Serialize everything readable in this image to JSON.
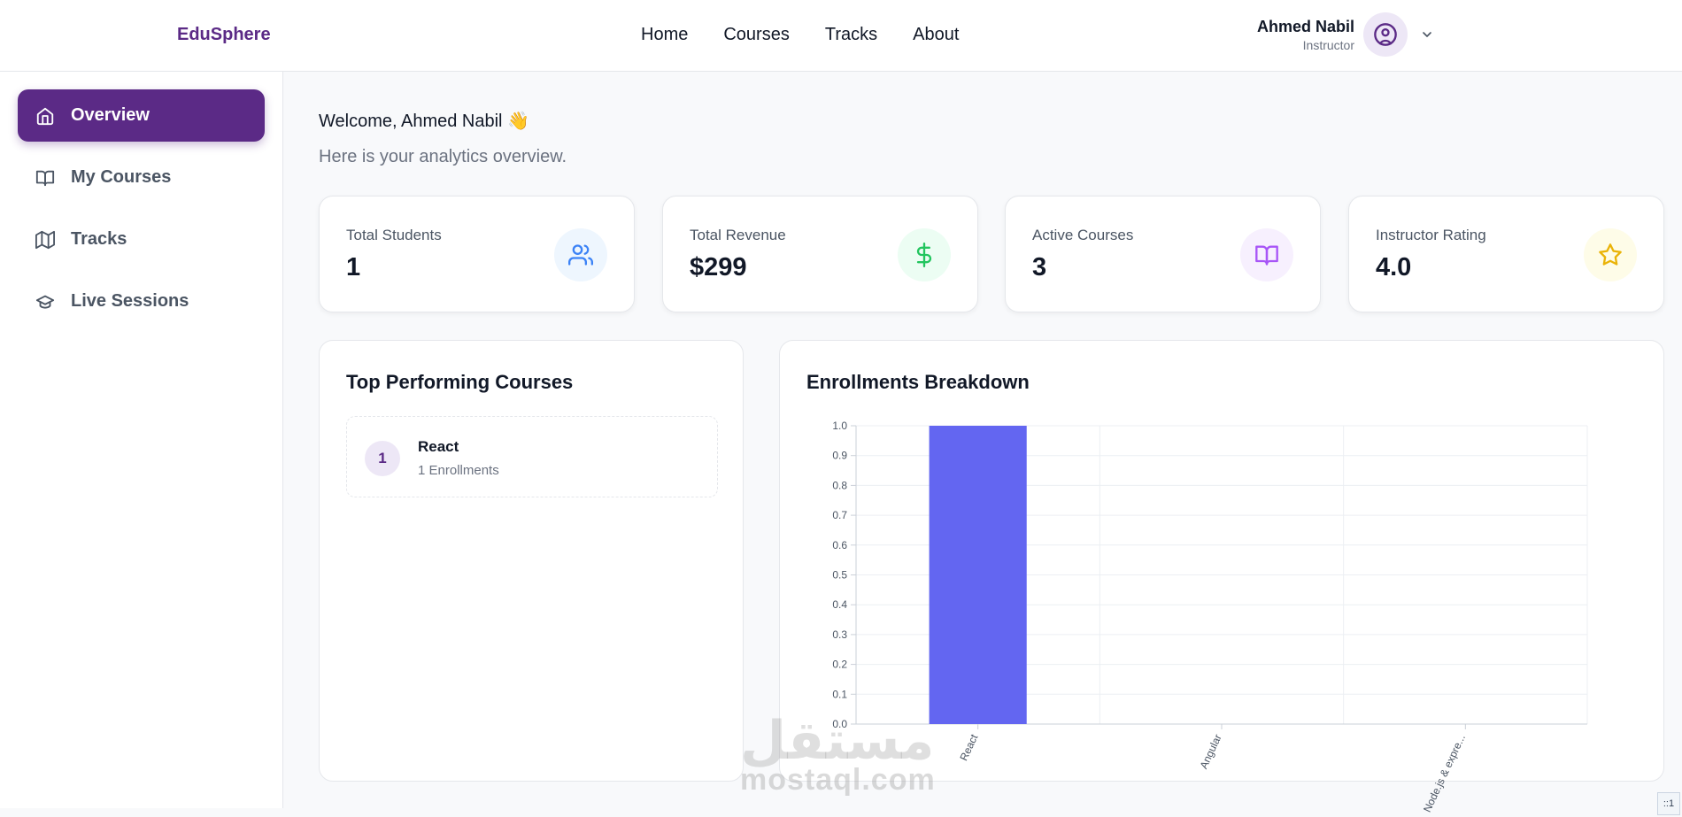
{
  "header": {
    "brand": "EduSphere",
    "nav": [
      {
        "label": "Home"
      },
      {
        "label": "Courses"
      },
      {
        "label": "Tracks"
      },
      {
        "label": "About"
      }
    ],
    "user": {
      "name": "Ahmed Nabil",
      "role": "Instructor"
    }
  },
  "sidebar": {
    "items": [
      {
        "label": "Overview",
        "icon": "home-icon",
        "active": true
      },
      {
        "label": "My Courses",
        "icon": "book-open-icon",
        "active": false
      },
      {
        "label": "Tracks",
        "icon": "map-icon",
        "active": false
      },
      {
        "label": "Live Sessions",
        "icon": "graduation-cap-icon",
        "active": false
      }
    ]
  },
  "main": {
    "welcome": "Welcome, Ahmed Nabil 👋",
    "subtitle": "Here is your analytics overview.",
    "stats": [
      {
        "label": "Total Students",
        "value": "1",
        "icon": "users-icon",
        "color": "#3b82f6",
        "bg": "#eef6fe"
      },
      {
        "label": "Total Revenue",
        "value": "$299",
        "icon": "dollar-icon",
        "color": "#22c55e",
        "bg": "#ecfdf3"
      },
      {
        "label": "Active Courses",
        "value": "3",
        "icon": "book-open-icon",
        "color": "#a855f7",
        "bg": "#f7f0fe"
      },
      {
        "label": "Instructor Rating",
        "value": "4.0",
        "icon": "star-icon",
        "color": "#eab308",
        "bg": "#fefce8"
      }
    ],
    "top_courses": {
      "title": "Top Performing Courses",
      "items": [
        {
          "rank": "1",
          "name": "React",
          "enrollments": "1 Enrollments"
        }
      ]
    },
    "enrollments": {
      "title": "Enrollments Breakdown"
    }
  },
  "chart_data": {
    "type": "bar",
    "title": "Enrollments Breakdown",
    "categories": [
      "React",
      "Angular",
      "Node.js & expre..."
    ],
    "values": [
      1,
      0,
      0
    ],
    "ylim": [
      0,
      1
    ],
    "yticks": [
      "0.0",
      "0.1",
      "0.2",
      "0.3",
      "0.4",
      "0.5",
      "0.6",
      "0.7",
      "0.8",
      "0.9",
      "1.0"
    ],
    "grid": true,
    "bar_color": "#6366f1"
  },
  "watermark": {
    "latin": "mostaql.com",
    "arabic": "مستقل"
  },
  "corner_tag": "::1"
}
